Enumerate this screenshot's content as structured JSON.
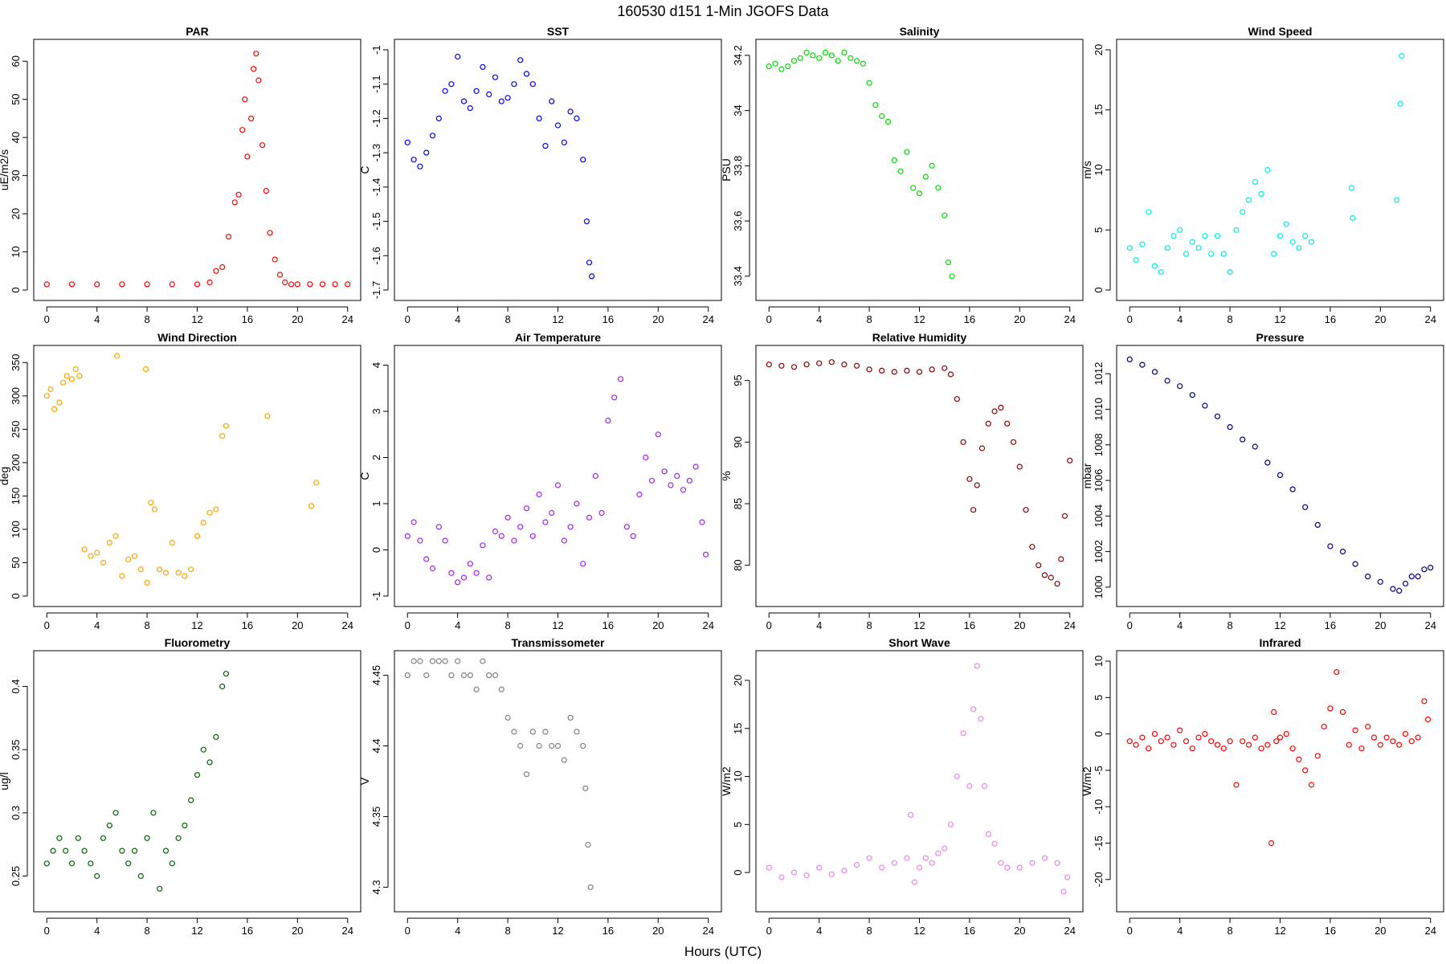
{
  "figure": {
    "title": "160530   d151   1-Min  JGOFS Data",
    "xlabel": "Hours (UTC)"
  },
  "chart_data": [
    {
      "type": "scatter",
      "title": "PAR",
      "ylabel": "uE/m2/s",
      "color": "#ff0000",
      "xlim": [
        0,
        24
      ],
      "xticks": [
        0,
        4,
        8,
        12,
        16,
        20,
        24
      ],
      "ylim": [
        0,
        63
      ],
      "yticks": [
        0,
        10,
        20,
        30,
        40,
        50,
        60
      ],
      "x": [
        0,
        2,
        4,
        6,
        8,
        10,
        12,
        13,
        13.5,
        14,
        14.5,
        15,
        15.3,
        15.6,
        15.8,
        16,
        16.3,
        16.5,
        16.7,
        16.9,
        17.2,
        17.5,
        17.8,
        18.2,
        18.6,
        19,
        19.5,
        20,
        21,
        22,
        23,
        24
      ],
      "y": [
        1.5,
        1.5,
        1.5,
        1.5,
        1.5,
        1.5,
        1.5,
        2,
        5,
        6,
        14,
        23,
        25,
        42,
        50,
        35,
        45,
        58,
        62,
        55,
        38,
        26,
        15,
        8,
        4,
        2,
        1.5,
        1.5,
        1.5,
        1.5,
        1.5,
        1.5
      ]
    },
    {
      "type": "scatter",
      "title": "SST",
      "ylabel": "C",
      "color": "#0000ff",
      "xlim": [
        0,
        24
      ],
      "xticks": [
        0,
        4,
        8,
        12,
        16,
        20,
        24
      ],
      "ylim": [
        -1.7,
        -1.0
      ],
      "yticks": [
        -1.7,
        -1.6,
        -1.5,
        -1.4,
        -1.3,
        -1.2,
        -1.1,
        -1.0
      ],
      "x": [
        0,
        0.5,
        1,
        1.5,
        2,
        2.5,
        3,
        3.5,
        4,
        4.5,
        5,
        5.5,
        6,
        6.5,
        7,
        7.5,
        8,
        8.5,
        9,
        9.5,
        10,
        10.5,
        11,
        11.5,
        12,
        12.5,
        13,
        13.5,
        14,
        14.3,
        14.5,
        14.7
      ],
      "y": [
        -1.27,
        -1.32,
        -1.34,
        -1.3,
        -1.25,
        -1.2,
        -1.12,
        -1.1,
        -1.02,
        -1.15,
        -1.17,
        -1.12,
        -1.05,
        -1.13,
        -1.08,
        -1.15,
        -1.14,
        -1.1,
        -1.03,
        -1.07,
        -1.1,
        -1.2,
        -1.28,
        -1.15,
        -1.22,
        -1.27,
        -1.18,
        -1.2,
        -1.32,
        -1.5,
        -1.62,
        -1.66
      ]
    },
    {
      "type": "scatter",
      "title": "Salinity",
      "ylabel": "PSU",
      "color": "#00dd00",
      "xlim": [
        0,
        24
      ],
      "xticks": [
        0,
        4,
        8,
        12,
        16,
        20,
        24
      ],
      "ylim": [
        33.35,
        34.22
      ],
      "yticks": [
        33.4,
        33.6,
        33.8,
        34.0,
        34.2
      ],
      "x": [
        0,
        0.5,
        1,
        1.5,
        2,
        2.5,
        3,
        3.5,
        4,
        4.5,
        5,
        5.5,
        6,
        6.5,
        7,
        7.5,
        8,
        8.5,
        9,
        9.5,
        10,
        10.5,
        11,
        11.5,
        12,
        12.5,
        13,
        13.5,
        14,
        14.3,
        14.6
      ],
      "y": [
        34.16,
        34.17,
        34.15,
        34.16,
        34.18,
        34.19,
        34.21,
        34.2,
        34.19,
        34.21,
        34.2,
        34.18,
        34.21,
        34.19,
        34.18,
        34.17,
        34.1,
        34.02,
        33.98,
        33.96,
        33.82,
        33.78,
        33.85,
        33.72,
        33.7,
        33.76,
        33.8,
        33.72,
        33.62,
        33.45,
        33.4
      ]
    },
    {
      "type": "scatter",
      "title": "Wind Speed",
      "ylabel": "m/s",
      "color": "#00eeee",
      "xlim": [
        0,
        24
      ],
      "xticks": [
        0,
        4,
        8,
        12,
        16,
        20,
        24
      ],
      "ylim": [
        0,
        20
      ],
      "yticks": [
        0,
        5,
        10,
        15,
        20
      ],
      "x": [
        0,
        0.5,
        1,
        1.5,
        2,
        2.5,
        3,
        3.5,
        4,
        4.5,
        5,
        5.5,
        6,
        6.5,
        7,
        7.5,
        8,
        8.5,
        9,
        9.5,
        10,
        10.5,
        11,
        11.5,
        12,
        12.5,
        13,
        13.5,
        14,
        14.5,
        17.7,
        17.8,
        21.3,
        21.6,
        21.7
      ],
      "y": [
        3.5,
        2.5,
        3.8,
        6.5,
        2.0,
        1.5,
        3.5,
        4.5,
        5.0,
        3.0,
        4.0,
        3.5,
        4.5,
        3.0,
        4.5,
        3.0,
        1.5,
        5.0,
        6.5,
        7.5,
        9.0,
        8.0,
        10.0,
        3.0,
        4.5,
        5.5,
        4.0,
        3.5,
        4.5,
        4.0,
        8.5,
        6.0,
        7.5,
        15.5,
        19.5
      ]
    },
    {
      "type": "scatter",
      "title": "Wind Direction",
      "ylabel": "deg",
      "color": "#ffa500",
      "xlim": [
        0,
        24
      ],
      "xticks": [
        0,
        4,
        8,
        12,
        16,
        20,
        24
      ],
      "ylim": [
        0,
        360
      ],
      "yticks": [
        0,
        50,
        100,
        150,
        200,
        250,
        300,
        350
      ],
      "x": [
        0,
        0.3,
        0.6,
        1,
        1.3,
        1.6,
        2,
        2.3,
        2.6,
        3,
        3.5,
        4,
        4.5,
        5,
        5.5,
        6,
        6.5,
        7,
        7.5,
        8,
        8.3,
        8.6,
        9,
        9.5,
        10,
        10.5,
        11,
        11.5,
        12,
        12.5,
        13,
        13.5,
        14,
        14.3,
        17.6,
        21.1,
        21.5,
        5.6,
        7.9
      ],
      "y": [
        300,
        310,
        280,
        290,
        320,
        330,
        325,
        340,
        330,
        70,
        60,
        65,
        50,
        80,
        90,
        30,
        55,
        60,
        40,
        20,
        140,
        130,
        40,
        35,
        80,
        35,
        30,
        40,
        90,
        110,
        125,
        130,
        240,
        255,
        270,
        135,
        170,
        360,
        340
      ]
    },
    {
      "type": "scatter",
      "title": "Air Temperature",
      "ylabel": "C",
      "color": "#a020f0",
      "xlim": [
        0,
        24
      ],
      "xticks": [
        0,
        4,
        8,
        12,
        16,
        20,
        24
      ],
      "ylim": [
        -1,
        4.2
      ],
      "yticks": [
        -1,
        0,
        1,
        2,
        3,
        4
      ],
      "x": [
        0,
        0.5,
        1,
        1.5,
        2,
        2.5,
        3,
        3.5,
        4,
        4.5,
        5,
        5.5,
        6,
        6.5,
        7,
        7.5,
        8,
        8.5,
        9,
        9.5,
        10,
        10.5,
        11,
        11.5,
        12,
        12.5,
        13,
        13.5,
        14,
        14.5,
        15,
        15.5,
        16,
        16.5,
        17,
        17.5,
        18,
        18.5,
        19,
        19.5,
        20,
        20.5,
        21,
        21.5,
        22,
        22.5,
        23,
        23.5,
        23.8
      ],
      "y": [
        0.3,
        0.6,
        0.2,
        -0.2,
        -0.4,
        0.5,
        0.2,
        -0.5,
        -0.7,
        -0.6,
        -0.3,
        -0.5,
        0.1,
        -0.6,
        0.4,
        0.3,
        0.7,
        0.2,
        0.5,
        0.9,
        0.3,
        1.2,
        0.6,
        0.8,
        1.4,
        0.2,
        0.5,
        1.0,
        -0.3,
        0.7,
        1.6,
        0.8,
        2.8,
        3.3,
        3.7,
        0.5,
        0.3,
        1.2,
        2.0,
        1.5,
        2.5,
        1.7,
        1.4,
        1.6,
        1.3,
        1.5,
        1.8,
        0.6,
        -0.1
      ]
    },
    {
      "type": "scatter",
      "title": "Relative Humidity",
      "ylabel": "%",
      "color": "#8b0000",
      "xlim": [
        0,
        24
      ],
      "xticks": [
        0,
        4,
        8,
        12,
        16,
        20,
        24
      ],
      "ylim": [
        77.5,
        97
      ],
      "yticks": [
        80,
        85,
        90,
        95
      ],
      "x": [
        0,
        1,
        2,
        3,
        4,
        5,
        6,
        7,
        8,
        9,
        10,
        11,
        12,
        13,
        14,
        14.5,
        15,
        15.5,
        16,
        16.3,
        16.6,
        17,
        17.5,
        18,
        18.5,
        19,
        19.5,
        20,
        20.5,
        21,
        21.5,
        22,
        22.5,
        23,
        23.3,
        23.6,
        24
      ],
      "y": [
        96.3,
        96.2,
        96.1,
        96.3,
        96.4,
        96.5,
        96.3,
        96.2,
        95.9,
        95.8,
        95.7,
        95.8,
        95.7,
        95.9,
        96.0,
        95.5,
        93.5,
        90.0,
        87.0,
        84.5,
        86.5,
        89.5,
        91.5,
        92.5,
        92.8,
        91.5,
        90.0,
        88.0,
        84.5,
        81.5,
        80.0,
        79.2,
        79.0,
        78.5,
        80.5,
        84.0,
        88.5
      ]
    },
    {
      "type": "scatter",
      "title": "Pressure",
      "ylabel": "mbar",
      "color": "#000080",
      "xlim": [
        0,
        24
      ],
      "xticks": [
        0,
        4,
        8,
        12,
        16,
        20,
        24
      ],
      "ylim": [
        999.5,
        1013
      ],
      "yticks": [
        1000,
        1002,
        1004,
        1006,
        1008,
        1010,
        1012
      ],
      "x": [
        0,
        1,
        2,
        3,
        4,
        5,
        6,
        7,
        8,
        9,
        10,
        11,
        12,
        13,
        14,
        15,
        16,
        17,
        18,
        19,
        20,
        21,
        21.5,
        22,
        22.5,
        23,
        23.5,
        24
      ],
      "y": [
        1012.8,
        1012.5,
        1012.1,
        1011.6,
        1011.3,
        1010.8,
        1010.2,
        1009.6,
        1009.0,
        1008.3,
        1007.9,
        1007.0,
        1006.3,
        1005.5,
        1004.5,
        1003.5,
        1002.3,
        1002.0,
        1001.3,
        1000.6,
        1000.3,
        999.9,
        999.8,
        1000.2,
        1000.6,
        1000.6,
        1001.0,
        1001.1
      ]
    },
    {
      "type": "scatter",
      "title": "Fluorometry",
      "ylabel": "ug/l",
      "color": "#006400",
      "xlim": [
        0,
        24
      ],
      "xticks": [
        0,
        4,
        8,
        12,
        16,
        20,
        24
      ],
      "ylim": [
        0.23,
        0.42
      ],
      "yticks": [
        0.25,
        0.3,
        0.35,
        0.4
      ],
      "x": [
        0,
        0.5,
        1,
        1.5,
        2,
        2.5,
        3,
        3.5,
        4,
        4.5,
        5,
        5.5,
        6,
        6.5,
        7,
        7.5,
        8,
        8.5,
        9,
        9.5,
        10,
        10.5,
        11,
        11.5,
        12,
        12.5,
        13,
        13.5,
        14,
        14.3
      ],
      "y": [
        0.26,
        0.27,
        0.28,
        0.27,
        0.26,
        0.28,
        0.27,
        0.26,
        0.25,
        0.28,
        0.29,
        0.3,
        0.27,
        0.26,
        0.27,
        0.25,
        0.28,
        0.3,
        0.24,
        0.27,
        0.26,
        0.28,
        0.29,
        0.31,
        0.33,
        0.35,
        0.34,
        0.36,
        0.4,
        0.41
      ]
    },
    {
      "type": "scatter",
      "title": "Transmissometer",
      "ylabel": "V",
      "color": "#808080",
      "xlim": [
        0,
        24
      ],
      "xticks": [
        0,
        4,
        8,
        12,
        16,
        20,
        24
      ],
      "ylim": [
        4.29,
        4.46
      ],
      "yticks": [
        4.3,
        4.35,
        4.4,
        4.45
      ],
      "x": [
        0,
        0.5,
        1,
        1.5,
        2,
        2.5,
        3,
        3.5,
        4,
        4.5,
        5,
        5.5,
        6,
        6.5,
        7,
        7.5,
        8,
        8.5,
        9,
        9.5,
        10,
        10.5,
        11,
        11.5,
        12,
        12.5,
        13,
        13.5,
        14,
        14.2,
        14.4,
        14.6
      ],
      "y": [
        4.45,
        4.46,
        4.46,
        4.45,
        4.46,
        4.46,
        4.46,
        4.45,
        4.46,
        4.45,
        4.45,
        4.44,
        4.46,
        4.45,
        4.45,
        4.44,
        4.42,
        4.41,
        4.4,
        4.38,
        4.41,
        4.4,
        4.41,
        4.4,
        4.4,
        4.39,
        4.42,
        4.41,
        4.4,
        4.37,
        4.33,
        4.3
      ]
    },
    {
      "type": "scatter",
      "title": "Short Wave",
      "ylabel": "W/m2",
      "color": "#ee82ee",
      "xlim": [
        0,
        24
      ],
      "xticks": [
        0,
        4,
        8,
        12,
        16,
        20,
        24
      ],
      "ylim": [
        -3,
        22
      ],
      "yticks": [
        0,
        5,
        10,
        15,
        20
      ],
      "x": [
        0,
        1,
        2,
        3,
        4,
        5,
        6,
        7,
        8,
        9,
        10,
        11,
        11.3,
        11.6,
        12,
        12.5,
        13,
        13.5,
        14,
        14.5,
        15,
        15.5,
        16,
        16.3,
        16.6,
        16.9,
        17.2,
        17.5,
        18,
        18.5,
        19,
        20,
        21,
        22,
        23,
        23.5,
        23.8
      ],
      "y": [
        0.5,
        -0.5,
        0,
        -0.3,
        0.5,
        -0.2,
        0.2,
        0.8,
        1.5,
        0.5,
        1.0,
        1.5,
        6.0,
        -1.0,
        0.5,
        1.5,
        1.0,
        2.0,
        2.5,
        5.0,
        10.0,
        14.5,
        9.0,
        17.0,
        21.5,
        16.0,
        9.0,
        4.0,
        3.0,
        1.0,
        0.5,
        0.5,
        1.0,
        1.5,
        1.0,
        -2.0,
        -0.5
      ]
    },
    {
      "type": "scatter",
      "title": "Infrared",
      "ylabel": "W/m2",
      "color": "#ff0000",
      "xlim": [
        0,
        24
      ],
      "xticks": [
        0,
        4,
        8,
        12,
        16,
        20,
        24
      ],
      "ylim": [
        -23,
        10
      ],
      "yticks": [
        -20,
        -15,
        -10,
        -5,
        0,
        5,
        10
      ],
      "x": [
        0,
        0.5,
        1,
        1.5,
        2,
        2.5,
        3,
        3.5,
        4,
        4.5,
        5,
        5.5,
        6,
        6.5,
        7,
        7.5,
        8,
        8.5,
        9,
        9.5,
        10,
        10.5,
        11,
        11.3,
        11.5,
        11.7,
        12,
        12.5,
        13,
        13.5,
        14,
        14.5,
        15,
        15.5,
        16,
        16.5,
        17,
        17.5,
        18,
        18.5,
        19,
        19.5,
        20,
        20.5,
        21,
        21.5,
        22,
        22.5,
        23,
        23.5,
        23.8
      ],
      "y": [
        -1,
        -1.5,
        -0.5,
        -2,
        0,
        -1,
        -0.5,
        -1.5,
        0.5,
        -1,
        -2,
        -0.5,
        0,
        -1,
        -1.5,
        -2,
        -1,
        -7,
        -1,
        -1.5,
        -0.5,
        -2,
        -1.5,
        -15,
        3,
        -1,
        -0.5,
        0,
        -2,
        -3.5,
        -5,
        -7,
        -3,
        1,
        3.5,
        8.5,
        3,
        -1.5,
        0.5,
        -2,
        1,
        -0.5,
        -1.5,
        -0.5,
        -1,
        -1.5,
        0,
        -1,
        -0.5,
        4.5,
        2
      ]
    }
  ]
}
